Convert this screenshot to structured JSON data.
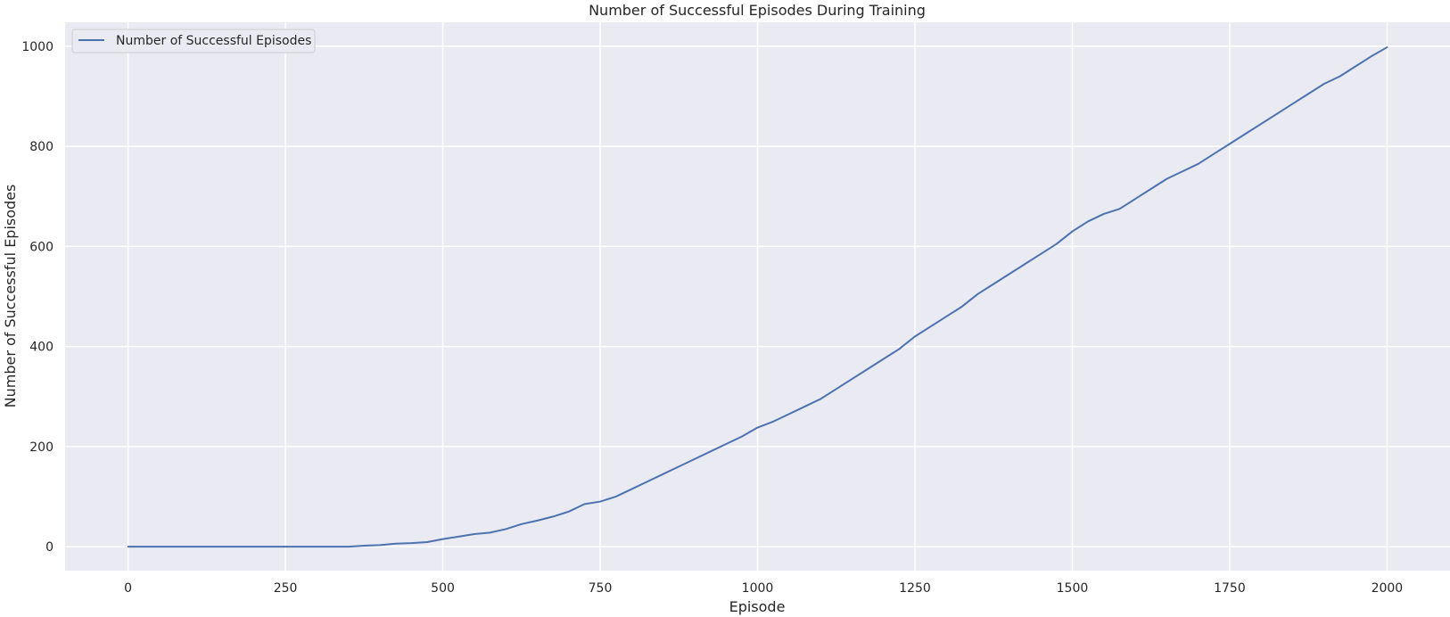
{
  "chart_data": {
    "type": "line",
    "title": "Number of Successful Episodes During Training",
    "xlabel": "Episode",
    "ylabel": "Number of Successful Episodes",
    "xlim": [
      -100,
      2100
    ],
    "ylim": [
      -48,
      1048
    ],
    "xticks": [
      0,
      250,
      500,
      750,
      1000,
      1250,
      1500,
      1750,
      2000
    ],
    "yticks": [
      0,
      200,
      400,
      600,
      800,
      1000
    ],
    "xtick_labels": [
      "0",
      "250",
      "500",
      "750",
      "1000",
      "1250",
      "1500",
      "1750",
      "2000"
    ],
    "ytick_labels": [
      "0",
      "200",
      "400",
      "600",
      "800",
      "1000"
    ],
    "grid": true,
    "legend": {
      "position": "top-left",
      "entries": [
        "Number of Successful Episodes"
      ]
    },
    "series": [
      {
        "name": "Number of Successful Episodes",
        "color": "#4c72b0",
        "x": [
          0,
          50,
          100,
          150,
          200,
          250,
          300,
          350,
          375,
          400,
          425,
          450,
          475,
          500,
          525,
          550,
          575,
          600,
          625,
          650,
          675,
          700,
          725,
          750,
          775,
          800,
          825,
          850,
          875,
          900,
          925,
          950,
          975,
          1000,
          1025,
          1050,
          1075,
          1100,
          1125,
          1150,
          1175,
          1200,
          1225,
          1250,
          1275,
          1300,
          1325,
          1350,
          1375,
          1400,
          1425,
          1450,
          1475,
          1500,
          1525,
          1550,
          1575,
          1600,
          1625,
          1650,
          1675,
          1700,
          1725,
          1750,
          1775,
          1800,
          1825,
          1850,
          1875,
          1900,
          1925,
          1950,
          1975,
          2000
        ],
        "y": [
          0,
          0,
          0,
          0,
          0,
          0,
          0,
          0,
          2,
          3,
          6,
          7,
          9,
          15,
          20,
          25,
          28,
          35,
          45,
          52,
          60,
          70,
          85,
          90,
          100,
          115,
          130,
          145,
          160,
          175,
          190,
          205,
          220,
          238,
          250,
          265,
          280,
          295,
          315,
          335,
          355,
          375,
          395,
          420,
          440,
          460,
          480,
          505,
          525,
          545,
          565,
          585,
          605,
          630,
          650,
          665,
          675,
          695,
          715,
          735,
          750,
          765,
          785,
          805,
          825,
          845,
          865,
          885,
          905,
          925,
          940,
          960,
          980,
          998
        ]
      }
    ]
  }
}
